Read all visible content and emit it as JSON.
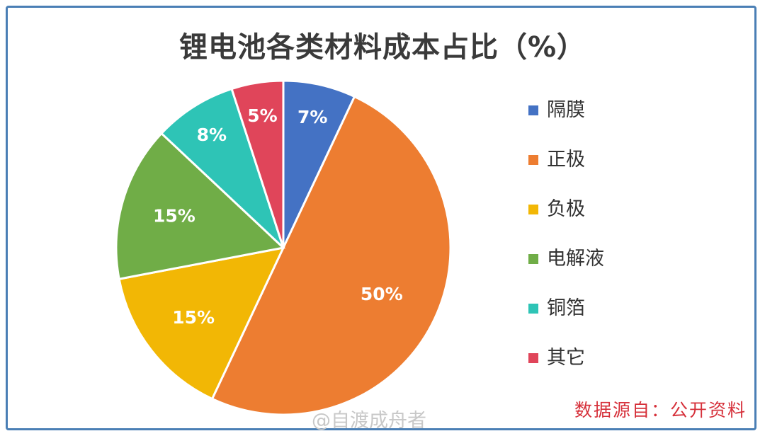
{
  "chart_data": {
    "type": "pie",
    "title": "锂电池各类材料成本占比（%）",
    "slices": [
      {
        "label": "隔膜",
        "value": 7,
        "display": "7%",
        "color": "#4472c4"
      },
      {
        "label": "正极",
        "value": 50,
        "display": "50%",
        "color": "#ed7d31"
      },
      {
        "label": "负极",
        "value": 15,
        "display": "15%",
        "color": "#f2b705"
      },
      {
        "label": "电解液",
        "value": 15,
        "display": "15%",
        "color": "#70ad47"
      },
      {
        "label": "铜箔",
        "value": 8,
        "display": "8%",
        "color": "#2ec4b6"
      },
      {
        "label": "其它",
        "value": 5,
        "display": "5%",
        "color": "#e0455a"
      }
    ],
    "legend_position": "right"
  },
  "source_note": "数据源自：公开资料",
  "watermark": "@自渡成舟者"
}
